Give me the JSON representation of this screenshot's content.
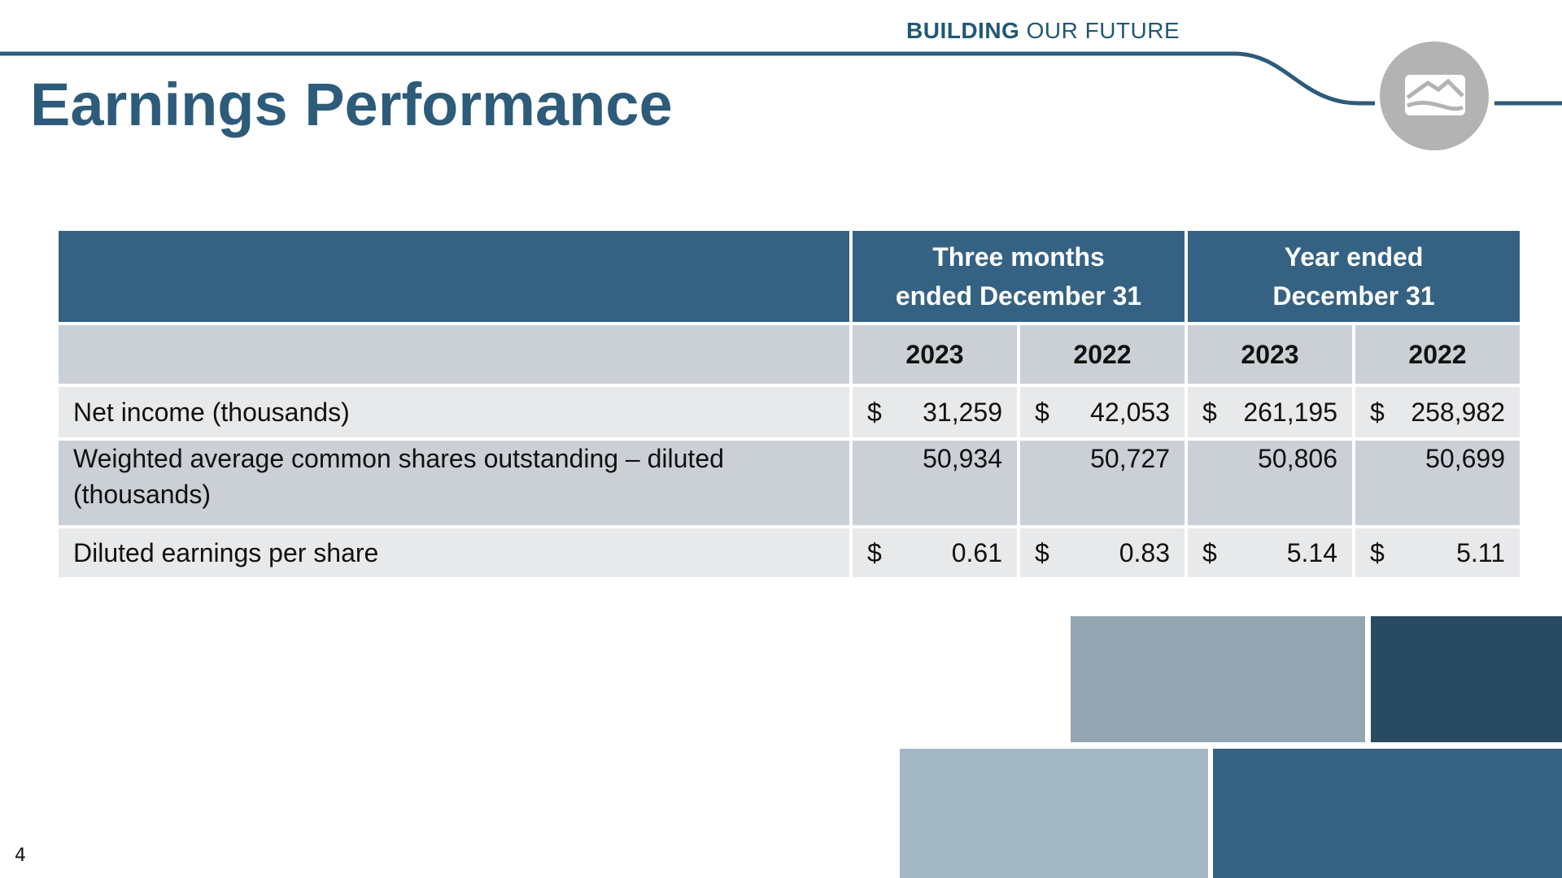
{
  "header": {
    "tagline_bold": "BUILDING",
    "tagline_light": "OUR FUTURE",
    "title": "Earnings Performance"
  },
  "table": {
    "group_headers": [
      "Three months ended December 31",
      "Year ended December 31"
    ],
    "years": [
      "2023",
      "2022",
      "2023",
      "2022"
    ],
    "rows": [
      {
        "label": "Net income (thousands)",
        "cells": [
          {
            "currency": "$",
            "value": "31,259"
          },
          {
            "currency": "$",
            "value": "42,053"
          },
          {
            "currency": "$",
            "value": "261,195"
          },
          {
            "currency": "$",
            "value": "258,982"
          }
        ]
      },
      {
        "label": "Weighted average common shares outstanding – diluted (thousands)",
        "cells": [
          {
            "value": "50,934"
          },
          {
            "value": "50,727"
          },
          {
            "value": "50,806"
          },
          {
            "value": "50,699"
          }
        ]
      },
      {
        "label": "Diluted earnings per share",
        "cells": [
          {
            "currency": "$",
            "value": "0.61"
          },
          {
            "currency": "$",
            "value": "0.83"
          },
          {
            "currency": "$",
            "value": "5.14"
          },
          {
            "currency": "$",
            "value": "5.11"
          }
        ]
      }
    ]
  },
  "footer": {
    "page_number": "4"
  }
}
